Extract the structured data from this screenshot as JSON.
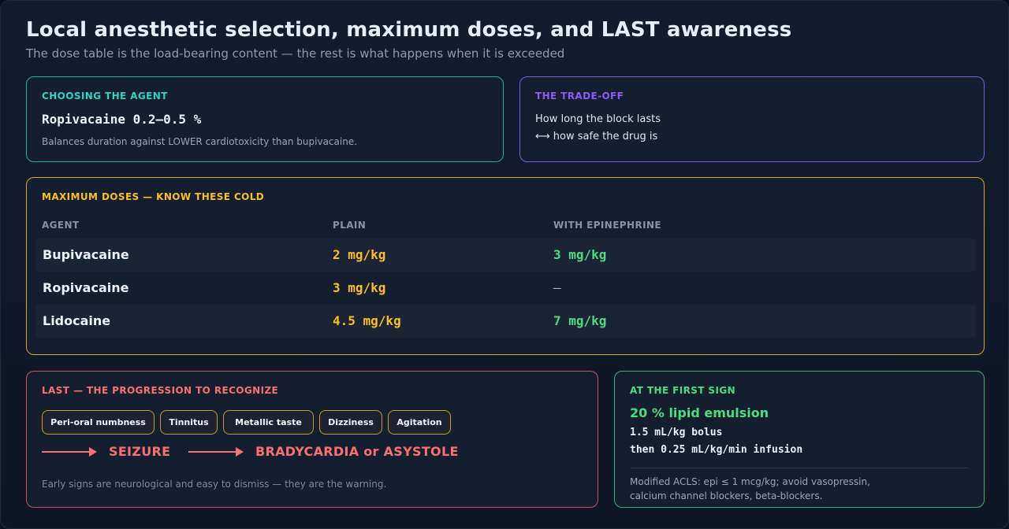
{
  "header": {
    "title": "Local anesthetic selection, maximum doses, and LAST awareness",
    "subtitle": "The dose table is the load-bearing content — the rest is what happens when it is exceeded"
  },
  "choosing": {
    "kicker": "CHOOSING THE AGENT",
    "agent": "Ropivacaine 0.2–0.5 %",
    "note": "Balances duration against LOWER cardiotoxicity than bupivacaine.",
    "accent": "#2dd4bf"
  },
  "tradeoff": {
    "kicker": "THE TRADE-OFF",
    "line1": "How long the block lasts",
    "line2": "⟷ how safe the drug is",
    "accent": "#8b5cf6"
  },
  "doses": {
    "kicker": "MAXIMUM DOSES — KNOW THESE COLD",
    "columns": [
      "AGENT",
      "PLAIN",
      "WITH EPINEPHRINE"
    ],
    "rows": [
      {
        "agent": "Bupivacaine",
        "plain": "2 mg/kg",
        "epi": "3 mg/kg"
      },
      {
        "agent": "Ropivacaine",
        "plain": "3 mg/kg",
        "epi": "—"
      },
      {
        "agent": "Lidocaine",
        "plain": "4.5 mg/kg",
        "epi": "7 mg/kg"
      }
    ],
    "accent": "#fbbf24"
  },
  "last": {
    "kicker": "LAST — THE PROGRESSION TO RECOGNIZE",
    "signs": [
      "Peri-oral numbness",
      "Tinnitus",
      "Metallic taste",
      "Dizziness",
      "Agitation"
    ],
    "outcomes": [
      "SEIZURE",
      "BRADYCARDIA or ASYSTOLE"
    ],
    "note": "Early signs are neurological and easy to dismiss — they are the warning.",
    "accent": "#f87171"
  },
  "first_sign": {
    "kicker": "AT THE FIRST SIGN",
    "treatment": "20 % lipid emulsion",
    "bolus": "1.5 mL/kg bolus",
    "infusion": "then 0.25 mL/kg/min infusion",
    "note1": "Modified ACLS: epi ≤ 1 mcg/kg; avoid vasopressin,",
    "note2": "calcium channel blockers, beta-blockers.",
    "accent": "#4ade80"
  }
}
